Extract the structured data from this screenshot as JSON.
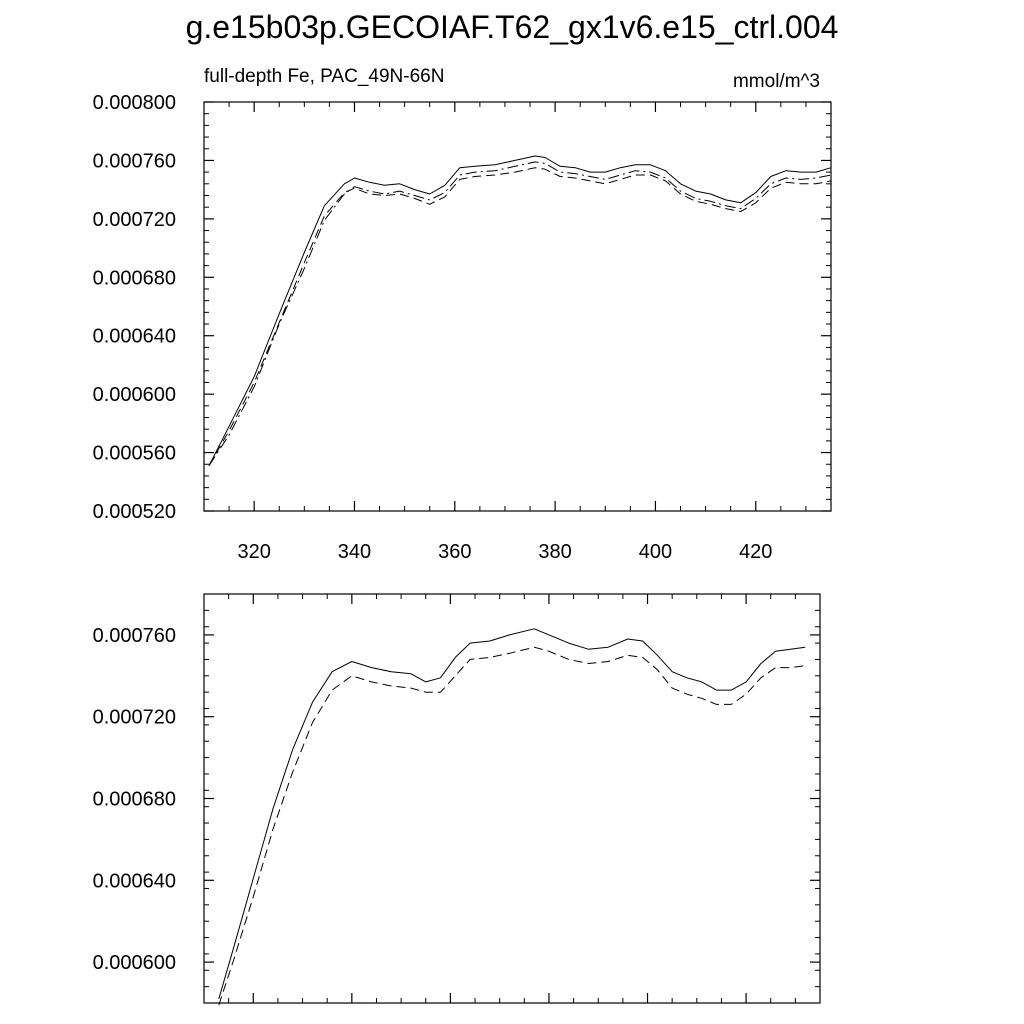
{
  "title": "g.e15b03p.GECOIAF.T62_gx1v6.e15_ctrl.004",
  "chart_data": [
    {
      "type": "line",
      "subtitle_left": "full-depth Fe, PAC_49N-66N",
      "subtitle_right": "mmol/m^3",
      "xlim": [
        310,
        435
      ],
      "ylim": [
        0.00052,
        0.0008
      ],
      "x_ticks": [
        320,
        340,
        360,
        380,
        400,
        420
      ],
      "x_tick_labels": [
        "320",
        "340",
        "360",
        "380",
        "400",
        "420"
      ],
      "y_ticks": [
        0.00052,
        0.00056,
        0.0006,
        0.00064,
        0.00068,
        0.00072,
        0.00076,
        0.0008
      ],
      "y_tick_labels": [
        "0.000520",
        "0.000560",
        "0.000600",
        "0.000640",
        "0.000680",
        "0.000720",
        "0.000760",
        "0.000800"
      ],
      "grid": false,
      "x": [
        311,
        315,
        320,
        325,
        330,
        334,
        338,
        340,
        343,
        346,
        349,
        352,
        355,
        358,
        361,
        364,
        368,
        372,
        376,
        378,
        381,
        384,
        387,
        390,
        393,
        396,
        399,
        402,
        405,
        408,
        411,
        414,
        417,
        420,
        423,
        426,
        429,
        432,
        435
      ],
      "series": [
        {
          "style": "solid",
          "values": [
            0.000551,
            0.000578,
            0.000612,
            0.000655,
            0.000697,
            0.000729,
            0.000744,
            0.000748,
            0.000745,
            0.000743,
            0.000744,
            0.00074,
            0.000737,
            0.000743,
            0.000755,
            0.000756,
            0.000757,
            0.00076,
            0.000763,
            0.000762,
            0.000756,
            0.000755,
            0.000752,
            0.000752,
            0.000755,
            0.000757,
            0.000757,
            0.000753,
            0.000744,
            0.000739,
            0.000737,
            0.000733,
            0.000731,
            0.000738,
            0.000749,
            0.000753,
            0.000752,
            0.000752,
            0.000755
          ]
        },
        {
          "style": "dashed",
          "values": [
            0.000551,
            0.000575,
            0.000608,
            0.000649,
            0.00069,
            0.000722,
            0.000738,
            0.000741,
            0.000737,
            0.000736,
            0.000737,
            0.000734,
            0.00073,
            0.000735,
            0.000747,
            0.000749,
            0.00075,
            0.000752,
            0.000755,
            0.000754,
            0.000749,
            0.000748,
            0.000746,
            0.000744,
            0.000747,
            0.00075,
            0.00075,
            0.000746,
            0.000737,
            0.000732,
            0.00073,
            0.000727,
            0.000725,
            0.000731,
            0.000741,
            0.000745,
            0.000744,
            0.000744,
            0.000746
          ]
        },
        {
          "style": "dashdot",
          "values": [
            0.000551,
            0.000572,
            0.000605,
            0.000648,
            0.000686,
            0.000719,
            0.000737,
            0.000742,
            0.000739,
            0.000737,
            0.000739,
            0.000736,
            0.000733,
            0.000738,
            0.00075,
            0.000752,
            0.000753,
            0.000756,
            0.000759,
            0.000758,
            0.000752,
            0.000751,
            0.000749,
            0.000747,
            0.00075,
            0.000753,
            0.000752,
            0.000748,
            0.000739,
            0.000734,
            0.000732,
            0.000729,
            0.000727,
            0.000734,
            0.000744,
            0.000748,
            0.000747,
            0.000748,
            0.00075
          ]
        }
      ]
    },
    {
      "type": "line",
      "xlim": [
        310,
        435
      ],
      "ylim": [
        0.00058,
        0.00078
      ],
      "x_ticks": [
        320,
        340,
        360,
        380,
        400,
        420
      ],
      "x_tick_labels": [],
      "y_ticks": [
        0.0006,
        0.00064,
        0.00068,
        0.00072,
        0.00076
      ],
      "y_tick_labels": [
        "0.000600",
        "0.000640",
        "0.000680",
        "0.000720",
        "0.000760"
      ],
      "grid": false,
      "x": [
        313,
        316,
        320,
        324,
        328,
        332,
        336,
        340,
        344,
        348,
        352,
        355,
        358,
        361,
        364,
        368,
        372,
        377,
        380,
        384,
        388,
        392,
        396,
        399,
        402,
        405,
        408,
        411,
        414,
        417,
        420,
        423,
        426,
        429,
        432
      ],
      "series": [
        {
          "style": "solid",
          "values": [
            0.000582,
            0.000607,
            0.000641,
            0.000675,
            0.000704,
            0.000727,
            0.000742,
            0.000747,
            0.000744,
            0.000742,
            0.000741,
            0.000737,
            0.000739,
            0.000749,
            0.000756,
            0.000757,
            0.00076,
            0.000763,
            0.00076,
            0.000756,
            0.000753,
            0.000754,
            0.000758,
            0.000757,
            0.00075,
            0.000742,
            0.000739,
            0.000737,
            0.000733,
            0.000733,
            0.000737,
            0.000746,
            0.000752,
            0.000753,
            0.000754
          ]
        },
        {
          "style": "dashed",
          "values": [
            0.000579,
            0.000601,
            0.000632,
            0.000665,
            0.000693,
            0.000717,
            0.000733,
            0.00074,
            0.000737,
            0.000735,
            0.000734,
            0.000732,
            0.000732,
            0.00074,
            0.000748,
            0.000749,
            0.000751,
            0.000754,
            0.000752,
            0.000748,
            0.000746,
            0.000747,
            0.00075,
            0.000749,
            0.000743,
            0.000734,
            0.000731,
            0.000729,
            0.000726,
            0.000726,
            0.000731,
            0.000739,
            0.000744,
            0.000744,
            0.000745
          ]
        }
      ]
    }
  ]
}
